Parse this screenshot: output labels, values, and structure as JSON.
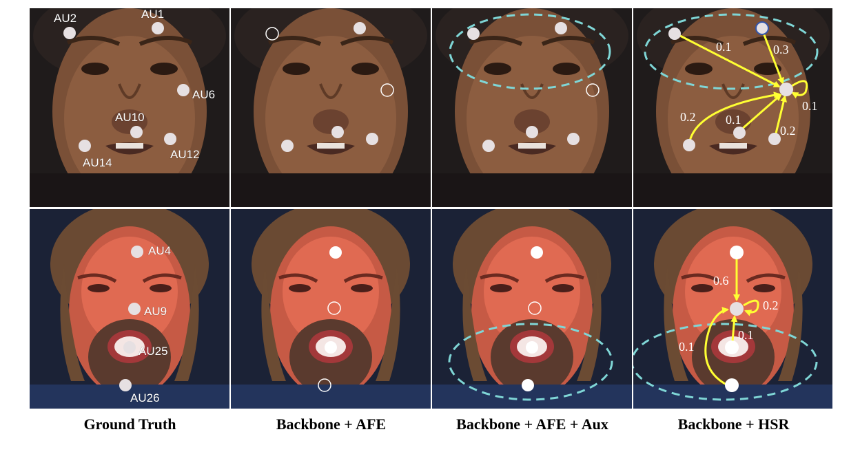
{
  "captions": [
    "Ground Truth",
    "Backbone + AFE",
    "Backbone + AFE + Aux",
    "Backbone + HSR"
  ],
  "rows": [
    {
      "subject": "face-1",
      "au_labels": [
        "AU2",
        "AU1",
        "AU6",
        "AU10",
        "AU12",
        "AU14"
      ],
      "hsr_weights": [
        "0.1",
        "0.3",
        "0.1",
        "0.2",
        "0.1",
        "0.2"
      ]
    },
    {
      "subject": "face-2",
      "au_labels": [
        "AU4",
        "AU9",
        "AU25",
        "AU26"
      ],
      "hsr_weights": [
        "0.6",
        "0.2",
        "0.1",
        "0.1"
      ]
    }
  ],
  "colors": {
    "point": "#e6e0e2",
    "miss": "#ffffff",
    "region": "#7fd6d6",
    "arrow": "#ffff33",
    "target": "#3355aa"
  }
}
